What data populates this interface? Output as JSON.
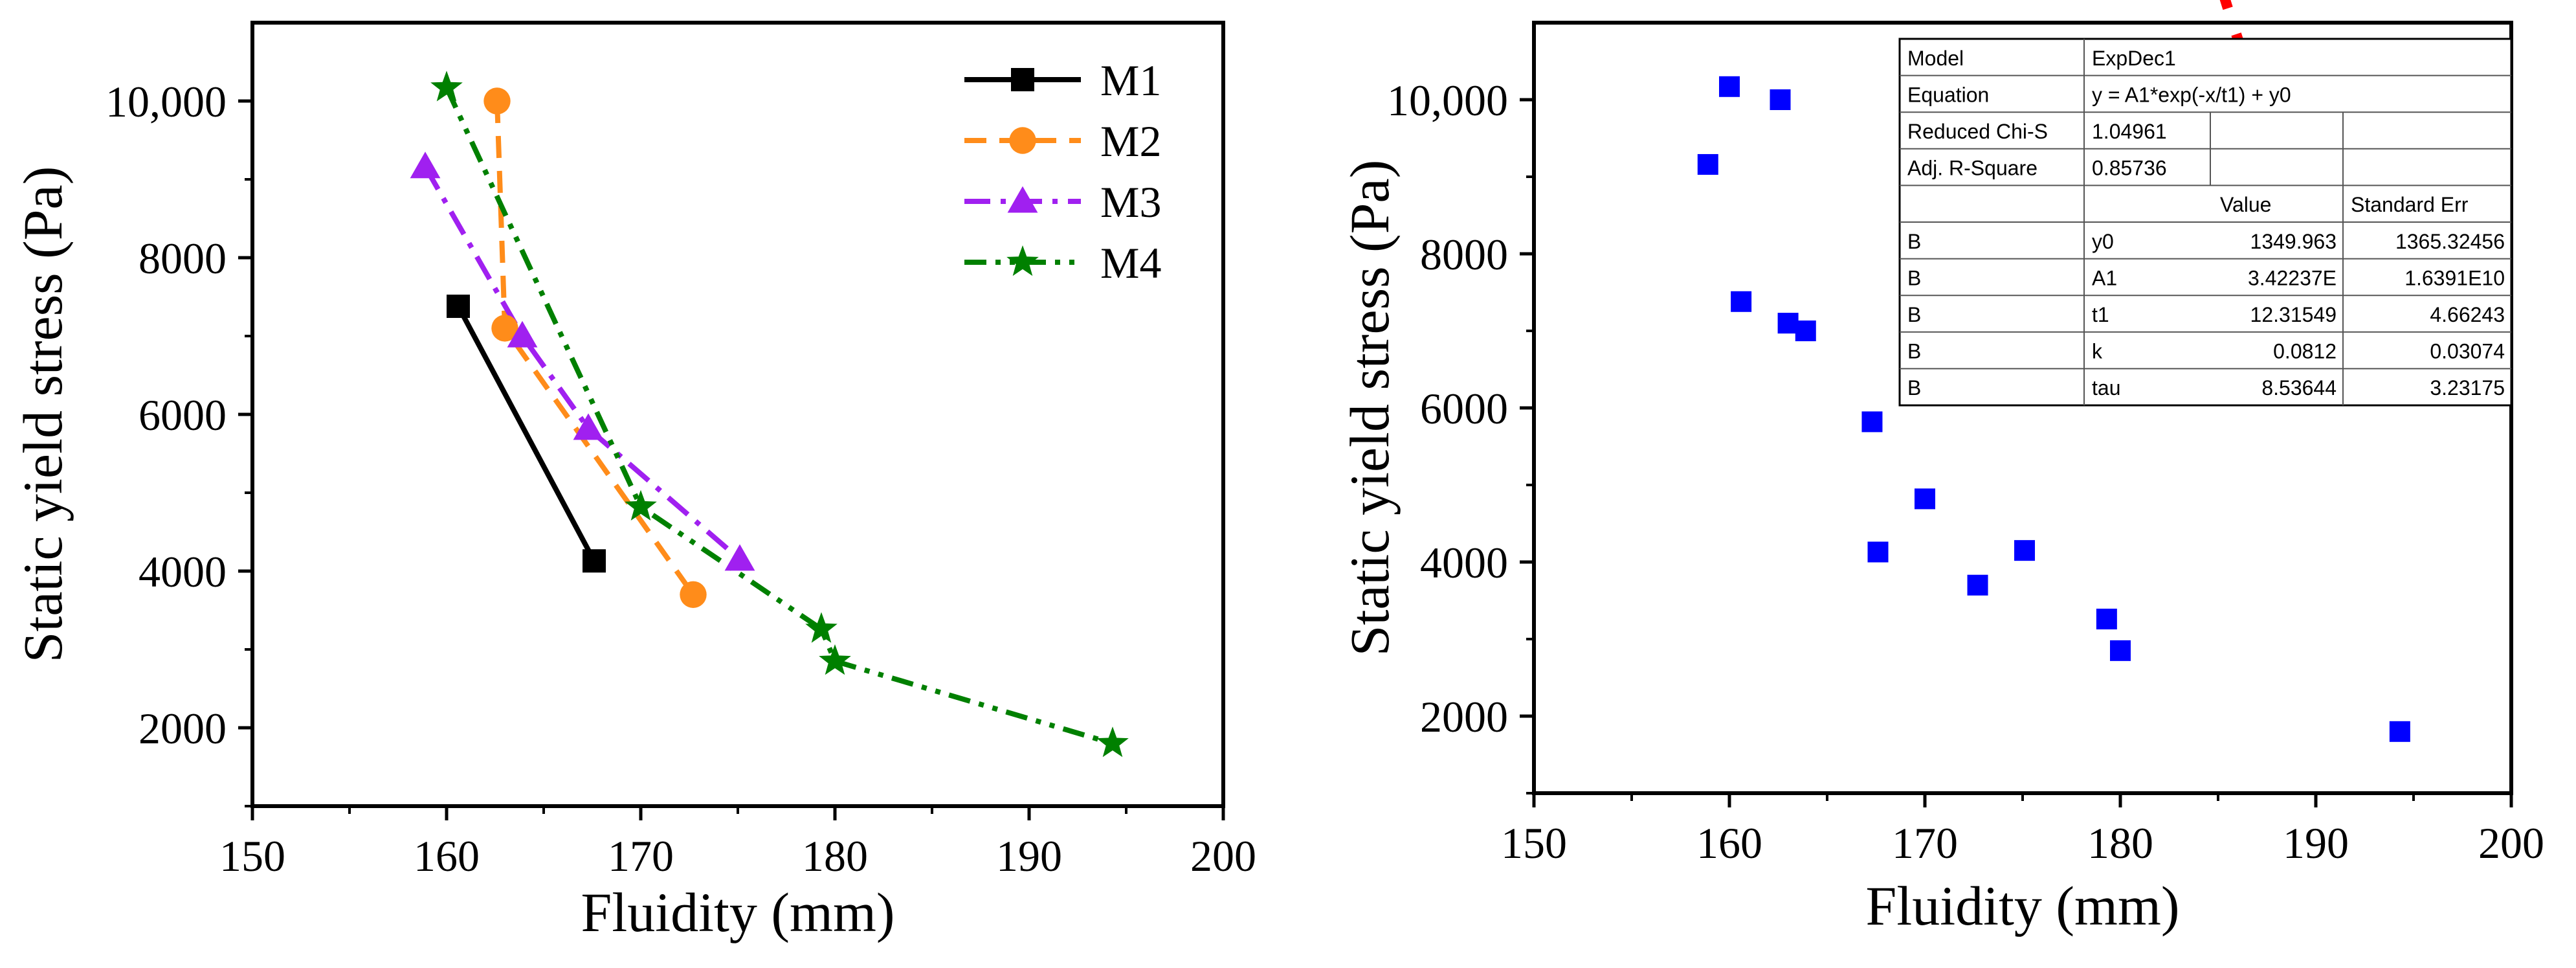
{
  "chart_data": [
    {
      "type": "line",
      "xlabel": "Fluidity (mm)",
      "ylabel": "Static yield stress (Pa)",
      "xlim": [
        150,
        200
      ],
      "ylim": [
        1000,
        11000
      ],
      "xticks": [
        150,
        160,
        170,
        180,
        190,
        200
      ],
      "xtick_labels": [
        "150",
        "160",
        "170",
        "180",
        "190",
        "200"
      ],
      "yticks": [
        2000,
        4000,
        6000,
        8000,
        10000
      ],
      "ytick_labels": [
        "2000",
        "4000",
        "6000",
        "8000",
        "10,000"
      ],
      "legend_position": "top-right",
      "series": [
        {
          "name": "M1",
          "color": "#000000",
          "marker": "square",
          "dash": "solid",
          "points": [
            [
              160.6,
              7380
            ],
            [
              167.6,
              4130
            ]
          ]
        },
        {
          "name": "M2",
          "color": "#FF8C1A",
          "marker": "circle",
          "dash": "dashed",
          "points": [
            [
              162.6,
              10000
            ],
            [
              163.0,
              7100
            ],
            [
              172.7,
              3700
            ]
          ]
        },
        {
          "name": "M3",
          "color": "#A020F0",
          "marker": "triangle",
          "dash": "dashdot",
          "points": [
            [
              158.9,
              9160
            ],
            [
              163.9,
              7000
            ],
            [
              167.3,
              5820
            ],
            [
              175.1,
              4150
            ]
          ]
        },
        {
          "name": "M4",
          "color": "#008000",
          "marker": "star",
          "dash": "dashdotdot",
          "points": [
            [
              160.0,
              10170
            ],
            [
              170.0,
              4820
            ],
            [
              179.3,
              3260
            ],
            [
              180.0,
              2850
            ],
            [
              194.3,
              1800
            ]
          ]
        }
      ]
    },
    {
      "type": "scatter",
      "xlabel": "Fluidity (mm)",
      "ylabel": "Static yield stress (Pa)",
      "xlim": [
        150,
        200
      ],
      "ylim": [
        1000,
        11000
      ],
      "xticks": [
        150,
        160,
        170,
        180,
        190,
        200
      ],
      "xtick_labels": [
        "150",
        "160",
        "170",
        "180",
        "190",
        "200"
      ],
      "yticks": [
        2000,
        4000,
        6000,
        8000,
        10000
      ],
      "ytick_labels": [
        "2000",
        "4000",
        "6000",
        "8000",
        "10,000"
      ],
      "points_color": "#0000FF",
      "points": [
        [
          158.9,
          9160
        ],
        [
          160.0,
          10170
        ],
        [
          160.6,
          7380
        ],
        [
          162.6,
          10000
        ],
        [
          163.0,
          7100
        ],
        [
          163.9,
          7000
        ],
        [
          167.3,
          5820
        ],
        [
          167.6,
          4130
        ],
        [
          170.0,
          4820
        ],
        [
          172.7,
          3700
        ],
        [
          175.1,
          4150
        ],
        [
          179.3,
          3260
        ],
        [
          180.0,
          2850
        ],
        [
          194.3,
          1800
        ]
      ],
      "fit": {
        "color": "#FF0000",
        "model": "ExpDec1",
        "y0": 1349.963,
        "A1": 34223700000.0,
        "t1": 12.31549,
        "x_range": [
          158.9,
          194.3
        ]
      },
      "stats_table": {
        "rows": [
          [
            "Model",
            "ExpDec1",
            ""
          ],
          [
            "Equation",
            "y = A1*exp(-x/t1) + y0",
            ""
          ],
          [
            "Reduced Chi-S",
            "1.04961",
            ""
          ],
          [
            "Adj. R-Square",
            "0.85736",
            ""
          ],
          [
            "",
            "",
            "Value",
            "Standard Err"
          ],
          [
            "B",
            "y0",
            "1349.963",
            "1365.32456"
          ],
          [
            "B",
            "A1",
            "3.42237E",
            "1.6391E10"
          ],
          [
            "B",
            "t1",
            "12.31549",
            "4.66243"
          ],
          [
            "B",
            "k",
            "0.0812",
            "0.03074"
          ],
          [
            "B",
            "tau",
            "8.53644",
            "3.23175"
          ]
        ]
      }
    }
  ]
}
